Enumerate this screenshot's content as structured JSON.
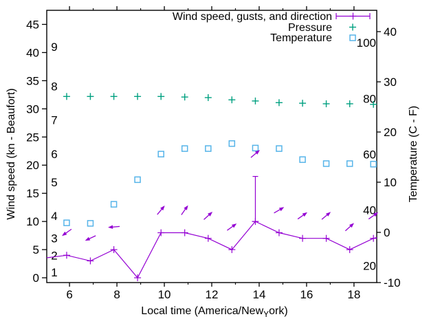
{
  "colors": {
    "wind": "#9400d3",
    "pressure": "#00a080",
    "temperature": "#56b4e9",
    "axis": "#000000",
    "background": "#ffffff"
  },
  "legend": {
    "entries": [
      {
        "label": "Wind speed, gusts, and direction",
        "series": "wind"
      },
      {
        "label": "Pressure",
        "series": "pressure"
      },
      {
        "label": "Temperature",
        "series": "temperature"
      }
    ]
  },
  "chart_data": {
    "type": "line",
    "title": "",
    "xlabel": "Local time (America/New_York)",
    "xlabel_enhanced": {
      "main": "Local time (America/New",
      "subscript": "Y",
      "tail": "ork)"
    },
    "ylabel_left": "Wind speed (kn - Beaufort)",
    "ylabel_right": "Temperature (C - F)",
    "x_hours": [
      5.88,
      6.88,
      7.87,
      8.87,
      9.86,
      10.86,
      11.85,
      12.85,
      13.84,
      14.84,
      15.83,
      16.83,
      17.82,
      18.82
    ],
    "series": [
      {
        "name": "Wind speed, gusts, and direction",
        "role": "wind",
        "type": "line+yerrorbars+vectors",
        "color_key": "wind",
        "wind_kn": [
          4,
          3,
          5,
          0,
          8,
          8,
          7,
          5,
          10,
          8,
          7,
          7,
          5,
          7
        ],
        "gust_kn": [
          4,
          3,
          5,
          0,
          8,
          8,
          7,
          5,
          18,
          8,
          7,
          7,
          5,
          7
        ],
        "direction_arrow_angles_deg": [
          215,
          205,
          185,
          null,
          50,
          55,
          42,
          36,
          40,
          30,
          35,
          40,
          42,
          35
        ],
        "clip_left": {
          "hour": 5.04,
          "kn": 3.55
        },
        "clip_right": {
          "hour": 18.96,
          "kn": 7.15
        }
      },
      {
        "name": "Pressure",
        "role": "pressure",
        "type": "points",
        "marker": "plus",
        "color_key": "pressure",
        "values_on_kn_scale": [
          32.2,
          32.2,
          32.2,
          32.2,
          32.2,
          32.1,
          32.0,
          31.6,
          31.4,
          31.1,
          31.0,
          30.9,
          30.9,
          30.8
        ]
      },
      {
        "name": "Temperature",
        "role": "temperature",
        "type": "points",
        "marker": "open-square",
        "color_key": "temperature",
        "values_c": [
          1.9,
          1.8,
          5.6,
          10.5,
          15.6,
          16.7,
          16.7,
          17.7,
          16.8,
          16.7,
          14.5,
          13.7,
          13.7,
          13.6
        ]
      }
    ],
    "axes": {
      "x": {
        "range": [
          5.04,
          18.96
        ],
        "major_ticks": [
          6,
          8,
          10,
          12,
          14,
          16,
          18
        ],
        "minor_ticks": [
          7,
          9,
          11,
          13,
          15,
          17
        ]
      },
      "y_left": {
        "range": [
          -0.85,
          47.5
        ],
        "ticks_kn": [
          0,
          5,
          10,
          15,
          20,
          25,
          30,
          35,
          40,
          45
        ]
      },
      "beaufort": {
        "labels": [
          1,
          2,
          3,
          4,
          5,
          6,
          7,
          8,
          9
        ],
        "at_kn": [
          1,
          4,
          7,
          11,
          17,
          22,
          28,
          34,
          41
        ]
      },
      "y_right_c": {
        "range": [
          -10,
          44.25
        ],
        "ticks_c": [
          -10,
          0,
          10,
          20,
          30,
          40
        ]
      },
      "y_right_f": {
        "ticks_f": [
          20,
          40,
          60,
          80,
          100
        ]
      }
    }
  }
}
